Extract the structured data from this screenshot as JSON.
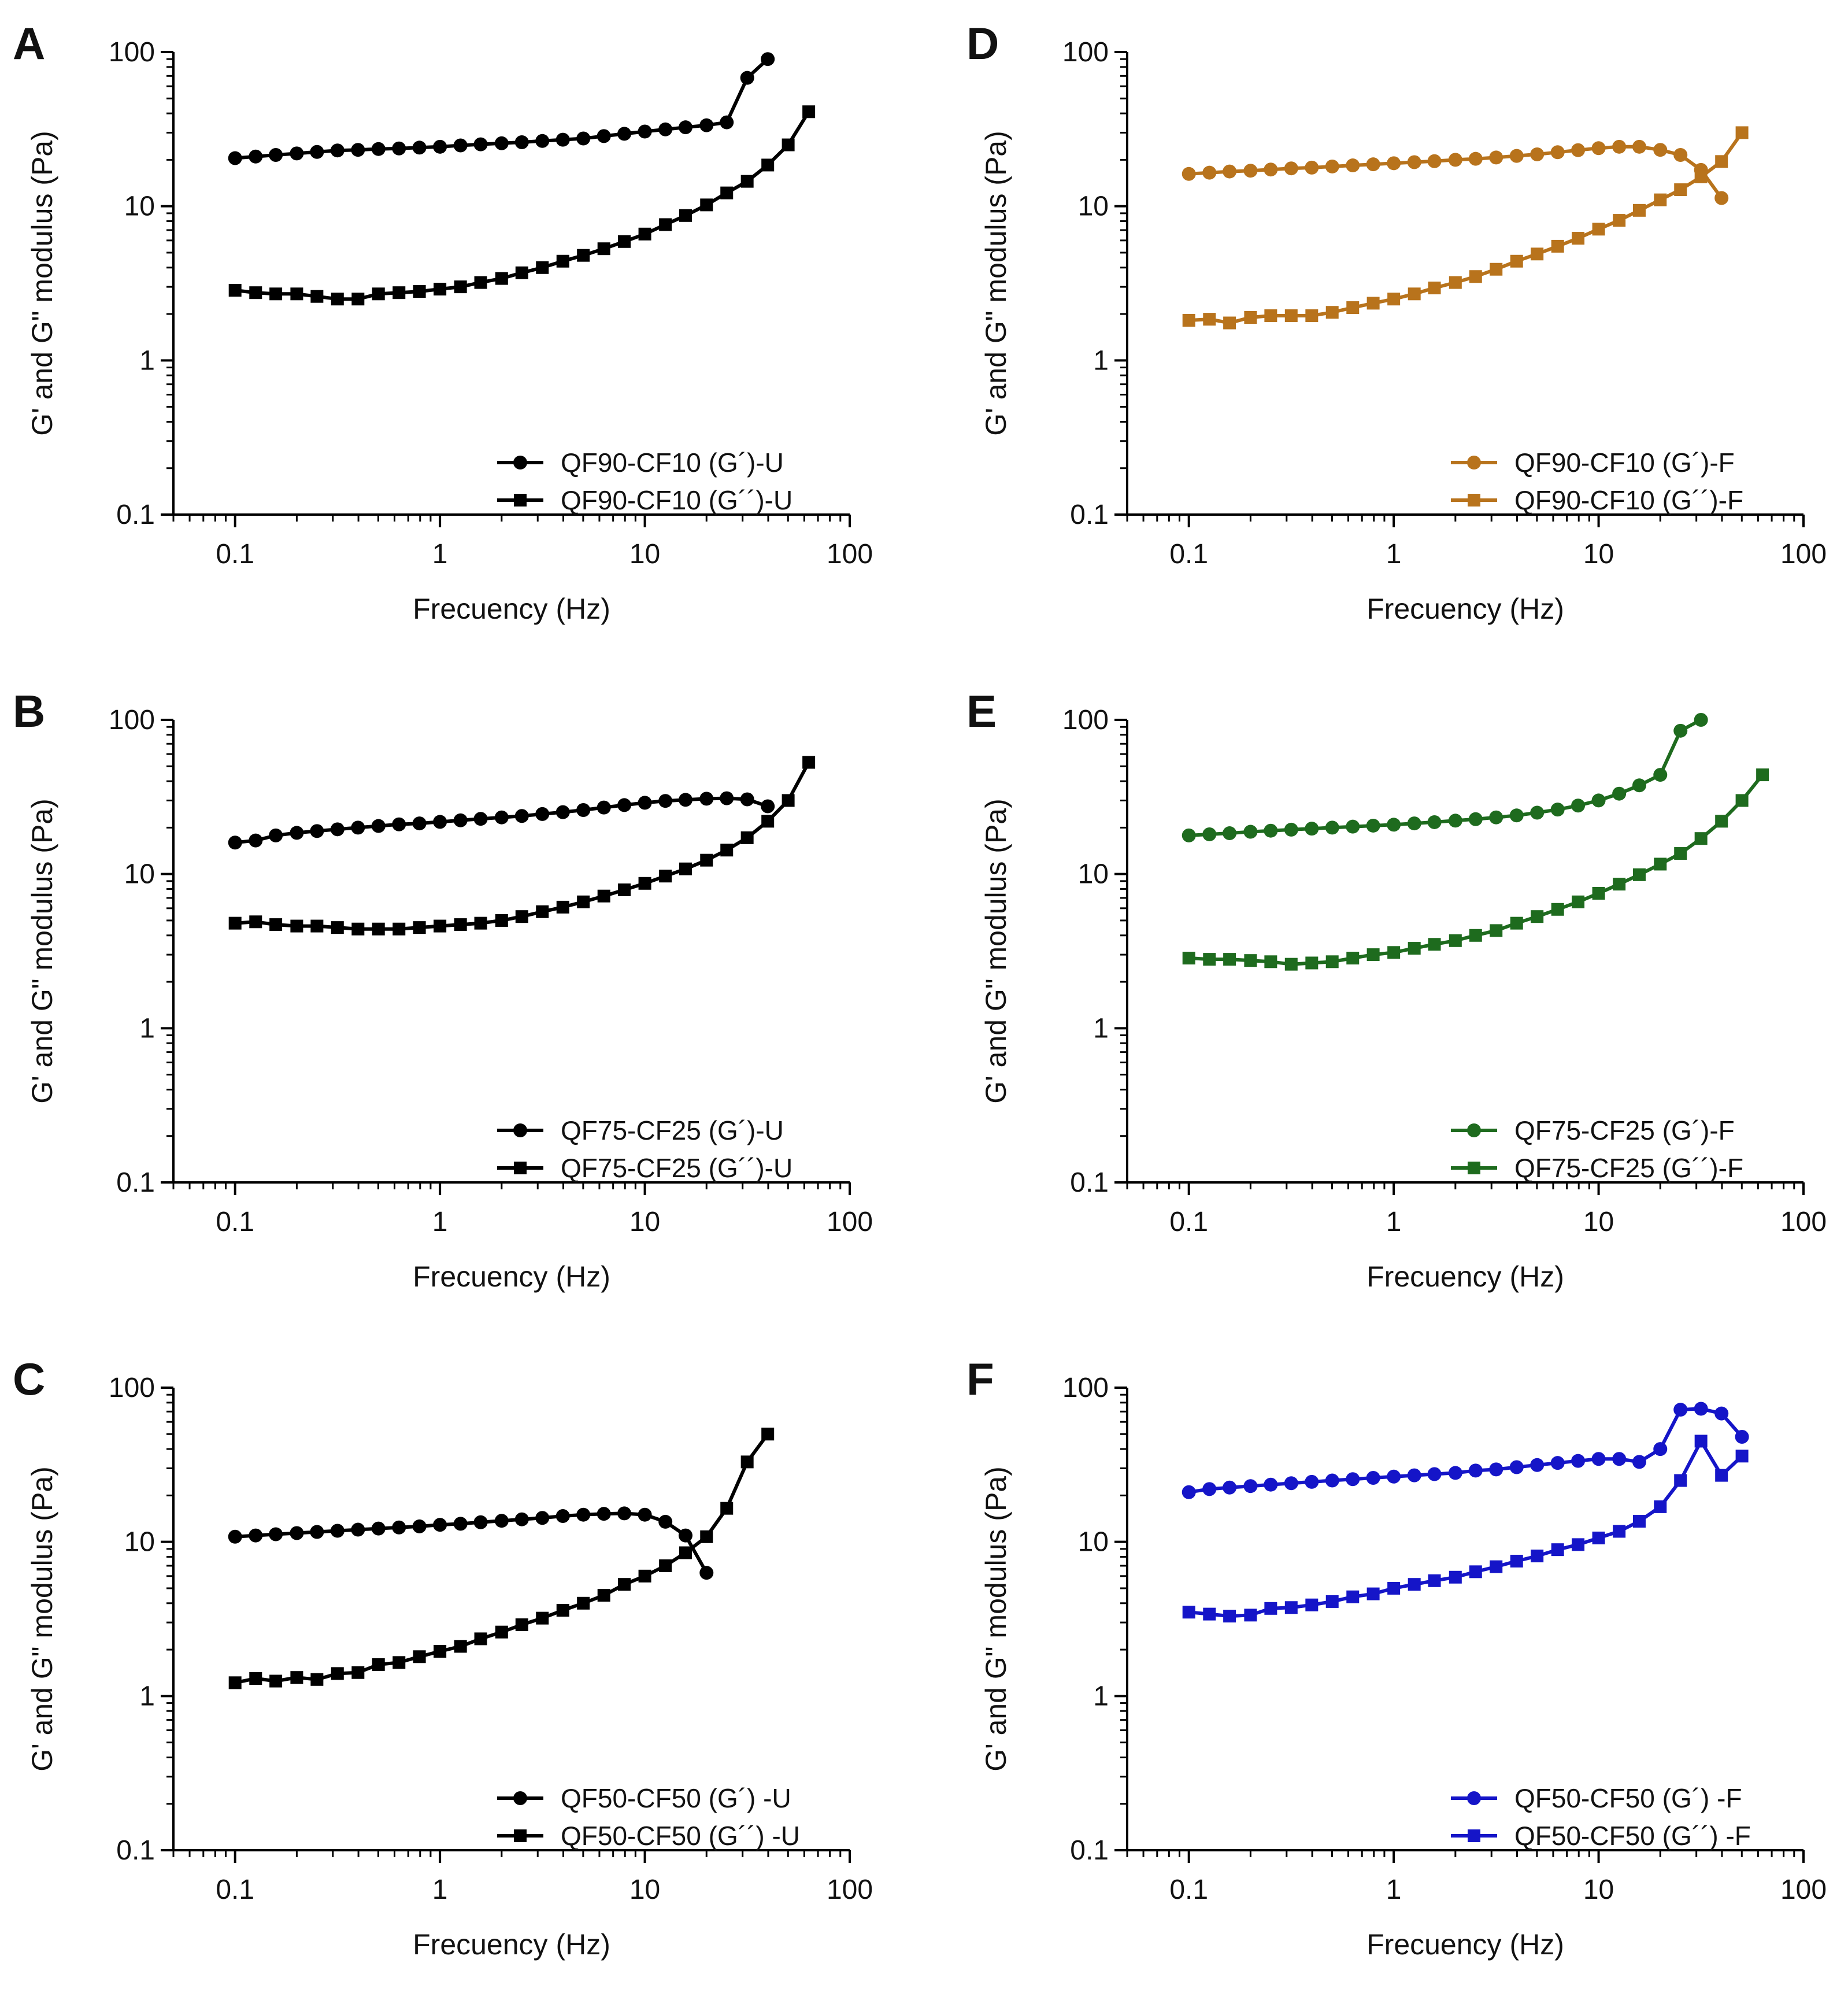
{
  "figure": {
    "panel_count": 6
  },
  "chart_data": [
    {
      "panel": "A",
      "type": "line",
      "scale": "log-log",
      "xlabel": "Frecuency (Hz)",
      "ylabel": "G' and G\" modulus (Pa)",
      "xlim": [
        0.05,
        100
      ],
      "ylim": [
        0.1,
        100
      ],
      "xticks": [
        "0.1",
        "1",
        "10",
        "100"
      ],
      "yticks": [
        "0.1",
        "1",
        "10",
        "100"
      ],
      "color": "#000000",
      "legend_position": "bottom-right",
      "series": [
        {
          "name": "QF90-CF10 (G´)-U",
          "marker": "circle",
          "x": [
            0.1,
            0.126,
            0.158,
            0.2,
            0.251,
            0.316,
            0.398,
            0.501,
            0.631,
            0.794,
            1,
            1.26,
            1.58,
            2,
            2.51,
            3.16,
            3.98,
            5.01,
            6.31,
            7.94,
            10,
            12.6,
            15.8,
            20,
            25.1,
            31.6,
            39.8
          ],
          "y": [
            20.5,
            21,
            21.5,
            22,
            22.5,
            23,
            23.2,
            23.5,
            23.7,
            24,
            24.3,
            24.8,
            25.2,
            25.6,
            26,
            26.5,
            27,
            27.5,
            28.5,
            29.5,
            30.5,
            31.5,
            32.5,
            33.5,
            35,
            68,
            90
          ]
        },
        {
          "name": "QF90-CF10 (G´´)-U",
          "marker": "square",
          "x": [
            0.1,
            0.126,
            0.158,
            0.2,
            0.251,
            0.316,
            0.398,
            0.501,
            0.631,
            0.794,
            1,
            1.26,
            1.58,
            2,
            2.51,
            3.16,
            3.98,
            5.01,
            6.31,
            7.94,
            10,
            12.6,
            15.8,
            20,
            25.1,
            31.6,
            39.8,
            50.1,
            63.1
          ],
          "y": [
            2.85,
            2.75,
            2.7,
            2.7,
            2.6,
            2.5,
            2.5,
            2.7,
            2.75,
            2.8,
            2.9,
            3.0,
            3.2,
            3.4,
            3.7,
            4.0,
            4.4,
            4.8,
            5.3,
            5.9,
            6.6,
            7.6,
            8.7,
            10.2,
            12.2,
            14.5,
            18.5,
            25,
            41
          ]
        }
      ]
    },
    {
      "panel": "B",
      "type": "line",
      "scale": "log-log",
      "xlabel": "Frecuency (Hz)",
      "ylabel": "G' and G\" modulus (Pa)",
      "xlim": [
        0.05,
        100
      ],
      "ylim": [
        0.1,
        100
      ],
      "xticks": [
        "0.1",
        "1",
        "10",
        "100"
      ],
      "yticks": [
        "0.1",
        "1",
        "10",
        "100"
      ],
      "color": "#000000",
      "legend_position": "bottom-right",
      "series": [
        {
          "name": "QF75-CF25 (G´)-U",
          "marker": "circle",
          "x": [
            0.1,
            0.126,
            0.158,
            0.2,
            0.251,
            0.316,
            0.398,
            0.501,
            0.631,
            0.794,
            1,
            1.26,
            1.58,
            2,
            2.51,
            3.16,
            3.98,
            5.01,
            6.31,
            7.94,
            10,
            12.6,
            15.8,
            20,
            25.1,
            31.6,
            39.8
          ],
          "y": [
            16,
            16.5,
            17.8,
            18.5,
            19,
            19.5,
            20,
            20.5,
            21,
            21.3,
            21.8,
            22.3,
            22.8,
            23.3,
            23.8,
            24.5,
            25.2,
            26,
            27,
            28,
            29,
            29.8,
            30.3,
            30.8,
            31,
            30.5,
            27.5
          ]
        },
        {
          "name": "QF75-CF25 (G´´)-U",
          "marker": "square",
          "x": [
            0.1,
            0.126,
            0.158,
            0.2,
            0.251,
            0.316,
            0.398,
            0.501,
            0.631,
            0.794,
            1,
            1.26,
            1.58,
            2,
            2.51,
            3.16,
            3.98,
            5.01,
            6.31,
            7.94,
            10,
            12.6,
            15.8,
            20,
            25.1,
            31.6,
            39.8,
            50.1,
            63.1
          ],
          "y": [
            4.8,
            4.9,
            4.7,
            4.6,
            4.6,
            4.5,
            4.4,
            4.4,
            4.4,
            4.5,
            4.6,
            4.7,
            4.8,
            5.0,
            5.3,
            5.7,
            6.1,
            6.6,
            7.2,
            7.9,
            8.7,
            9.7,
            10.8,
            12.3,
            14.3,
            17.2,
            22,
            30,
            53
          ]
        }
      ]
    },
    {
      "panel": "C",
      "type": "line",
      "scale": "log-log",
      "xlabel": "Frecuency (Hz)",
      "ylabel": "G' and G\" modulus (Pa)",
      "xlim": [
        0.05,
        100
      ],
      "ylim": [
        0.1,
        100
      ],
      "xticks": [
        "0.1",
        "1",
        "10",
        "100"
      ],
      "yticks": [
        "0.1",
        "1",
        "10",
        "100"
      ],
      "color": "#000000",
      "legend_position": "bottom-right",
      "series": [
        {
          "name": "QF50-CF50 (G´) -U",
          "marker": "circle",
          "x": [
            0.1,
            0.126,
            0.158,
            0.2,
            0.251,
            0.316,
            0.398,
            0.501,
            0.631,
            0.794,
            1,
            1.26,
            1.58,
            2,
            2.51,
            3.16,
            3.98,
            5.01,
            6.31,
            7.94,
            10,
            12.6,
            15.8,
            20
          ],
          "y": [
            10.8,
            11,
            11.2,
            11.4,
            11.6,
            11.8,
            12,
            12.2,
            12.4,
            12.6,
            12.9,
            13.1,
            13.4,
            13.7,
            14,
            14.3,
            14.7,
            15,
            15.2,
            15.3,
            15,
            13.5,
            11,
            6.3
          ]
        },
        {
          "name": "QF50-CF50 (G´´) -U",
          "marker": "square",
          "x": [
            0.1,
            0.126,
            0.158,
            0.2,
            0.251,
            0.316,
            0.398,
            0.501,
            0.631,
            0.794,
            1,
            1.26,
            1.58,
            2,
            2.51,
            3.16,
            3.98,
            5.01,
            6.31,
            7.94,
            10,
            12.6,
            15.8,
            20,
            25.1,
            31.6,
            39.8
          ],
          "y": [
            1.22,
            1.3,
            1.25,
            1.32,
            1.28,
            1.4,
            1.42,
            1.6,
            1.65,
            1.8,
            1.95,
            2.1,
            2.35,
            2.6,
            2.9,
            3.2,
            3.6,
            4.0,
            4.5,
            5.3,
            6.0,
            7.0,
            8.5,
            10.8,
            16.5,
            33,
            50
          ]
        }
      ]
    },
    {
      "panel": "D",
      "type": "line",
      "scale": "log-log",
      "xlabel": "Frecuency (Hz)",
      "ylabel": "G' and G\" modulus (Pa)",
      "xlim": [
        0.05,
        100
      ],
      "ylim": [
        0.1,
        100
      ],
      "xticks": [
        "0.1",
        "1",
        "10",
        "100"
      ],
      "yticks": [
        "0.1",
        "1",
        "10",
        "100"
      ],
      "color": "#B8731C",
      "legend_position": "bottom-right",
      "series": [
        {
          "name": "QF90-CF10 (G´)-F",
          "marker": "circle",
          "x": [
            0.1,
            0.126,
            0.158,
            0.2,
            0.251,
            0.316,
            0.398,
            0.501,
            0.631,
            0.794,
            1,
            1.26,
            1.58,
            2,
            2.51,
            3.16,
            3.98,
            5.01,
            6.31,
            7.94,
            10,
            12.6,
            15.8,
            20,
            25.1,
            31.6,
            39.8
          ],
          "y": [
            16.2,
            16.5,
            16.8,
            17,
            17.3,
            17.6,
            17.8,
            18.1,
            18.4,
            18.7,
            19,
            19.3,
            19.6,
            20,
            20.3,
            20.7,
            21.2,
            21.7,
            22.4,
            23.1,
            23.8,
            24.3,
            24.3,
            23.2,
            21.5,
            17.2,
            11.3
          ]
        },
        {
          "name": "QF90-CF10 (G´´)-F",
          "marker": "square",
          "x": [
            0.1,
            0.126,
            0.158,
            0.2,
            0.251,
            0.316,
            0.398,
            0.501,
            0.631,
            0.794,
            1,
            1.26,
            1.58,
            2,
            2.51,
            3.16,
            3.98,
            5.01,
            6.31,
            7.94,
            10,
            12.6,
            15.8,
            20,
            25.1,
            31.6,
            39.8,
            50.1
          ],
          "y": [
            1.82,
            1.85,
            1.75,
            1.9,
            1.95,
            1.95,
            1.95,
            2.05,
            2.2,
            2.35,
            2.5,
            2.7,
            2.95,
            3.2,
            3.5,
            3.9,
            4.4,
            4.9,
            5.5,
            6.2,
            7.1,
            8.1,
            9.4,
            11,
            12.8,
            15.5,
            19.5,
            30
          ]
        }
      ]
    },
    {
      "panel": "E",
      "type": "line",
      "scale": "log-log",
      "xlabel": "Frecuency (Hz)",
      "ylabel": "G' and G\" modulus (Pa)",
      "xlim": [
        0.05,
        100
      ],
      "ylim": [
        0.1,
        100
      ],
      "xticks": [
        "0.1",
        "1",
        "10",
        "100"
      ],
      "yticks": [
        "0.1",
        "1",
        "10",
        "100"
      ],
      "color": "#1E6B1E",
      "legend_position": "bottom-right",
      "series": [
        {
          "name": "QF75-CF25 (G´)-F",
          "marker": "circle",
          "x": [
            0.1,
            0.126,
            0.158,
            0.2,
            0.251,
            0.316,
            0.398,
            0.501,
            0.631,
            0.794,
            1,
            1.26,
            1.58,
            2,
            2.51,
            3.16,
            3.98,
            5.01,
            6.31,
            7.94,
            10,
            12.6,
            15.8,
            20,
            25.1,
            31.6
          ],
          "y": [
            17.8,
            18.1,
            18.4,
            18.8,
            19.1,
            19.4,
            19.7,
            20,
            20.3,
            20.6,
            20.9,
            21.3,
            21.7,
            22.2,
            22.7,
            23.3,
            24,
            25,
            26.2,
            27.8,
            30,
            33.2,
            37.6,
            44,
            85,
            100
          ]
        },
        {
          "name": "QF75-CF25 (G´´)-F",
          "marker": "square",
          "x": [
            0.1,
            0.126,
            0.158,
            0.2,
            0.251,
            0.316,
            0.398,
            0.501,
            0.631,
            0.794,
            1,
            1.26,
            1.58,
            2,
            2.51,
            3.16,
            3.98,
            5.01,
            6.31,
            7.94,
            10,
            12.6,
            15.8,
            20,
            25.1,
            31.6,
            39.8,
            50.1,
            63.1
          ],
          "y": [
            2.85,
            2.8,
            2.8,
            2.75,
            2.7,
            2.6,
            2.65,
            2.7,
            2.85,
            3.0,
            3.1,
            3.3,
            3.5,
            3.7,
            4.0,
            4.3,
            4.8,
            5.3,
            5.9,
            6.6,
            7.5,
            8.6,
            9.9,
            11.6,
            13.6,
            17,
            22,
            30,
            44
          ]
        }
      ]
    },
    {
      "panel": "F",
      "type": "line",
      "scale": "log-log",
      "xlabel": "Frecuency (Hz)",
      "ylabel": "G' and G\" modulus (Pa)",
      "xlim": [
        0.05,
        100
      ],
      "ylim": [
        0.1,
        100
      ],
      "xticks": [
        "0.1",
        "1",
        "10",
        "100"
      ],
      "yticks": [
        "0.1",
        "1",
        "10",
        "100"
      ],
      "color": "#1515C8",
      "legend_position": "bottom-right",
      "series": [
        {
          "name": "QF50-CF50 (G´) -F",
          "marker": "circle",
          "x": [
            0.1,
            0.126,
            0.158,
            0.2,
            0.251,
            0.316,
            0.398,
            0.501,
            0.631,
            0.794,
            1,
            1.26,
            1.58,
            2,
            2.51,
            3.16,
            3.98,
            5.01,
            6.31,
            7.94,
            10,
            12.6,
            15.8,
            20,
            25.1,
            31.6,
            39.8,
            50.1
          ],
          "y": [
            21,
            22,
            22.5,
            23,
            23.5,
            24,
            24.5,
            25,
            25.5,
            26,
            26.5,
            27,
            27.5,
            28,
            29,
            29.5,
            30.5,
            31.5,
            32.5,
            33.5,
            34.5,
            34.5,
            33,
            40,
            72,
            73,
            68,
            48
          ]
        },
        {
          "name": "QF50-CF50 (G´´) -F",
          "marker": "square",
          "x": [
            0.1,
            0.126,
            0.158,
            0.2,
            0.251,
            0.316,
            0.398,
            0.501,
            0.631,
            0.794,
            1,
            1.26,
            1.58,
            2,
            2.51,
            3.16,
            3.98,
            5.01,
            6.31,
            7.94,
            10,
            12.6,
            15.8,
            20,
            25.1,
            31.6,
            39.8,
            50.1
          ],
          "y": [
            3.5,
            3.4,
            3.3,
            3.35,
            3.7,
            3.75,
            3.9,
            4.1,
            4.4,
            4.6,
            5.0,
            5.3,
            5.6,
            5.9,
            6.4,
            6.9,
            7.5,
            8.1,
            8.9,
            9.6,
            10.6,
            11.7,
            13.6,
            16.9,
            25,
            45,
            27,
            36
          ]
        }
      ]
    }
  ]
}
